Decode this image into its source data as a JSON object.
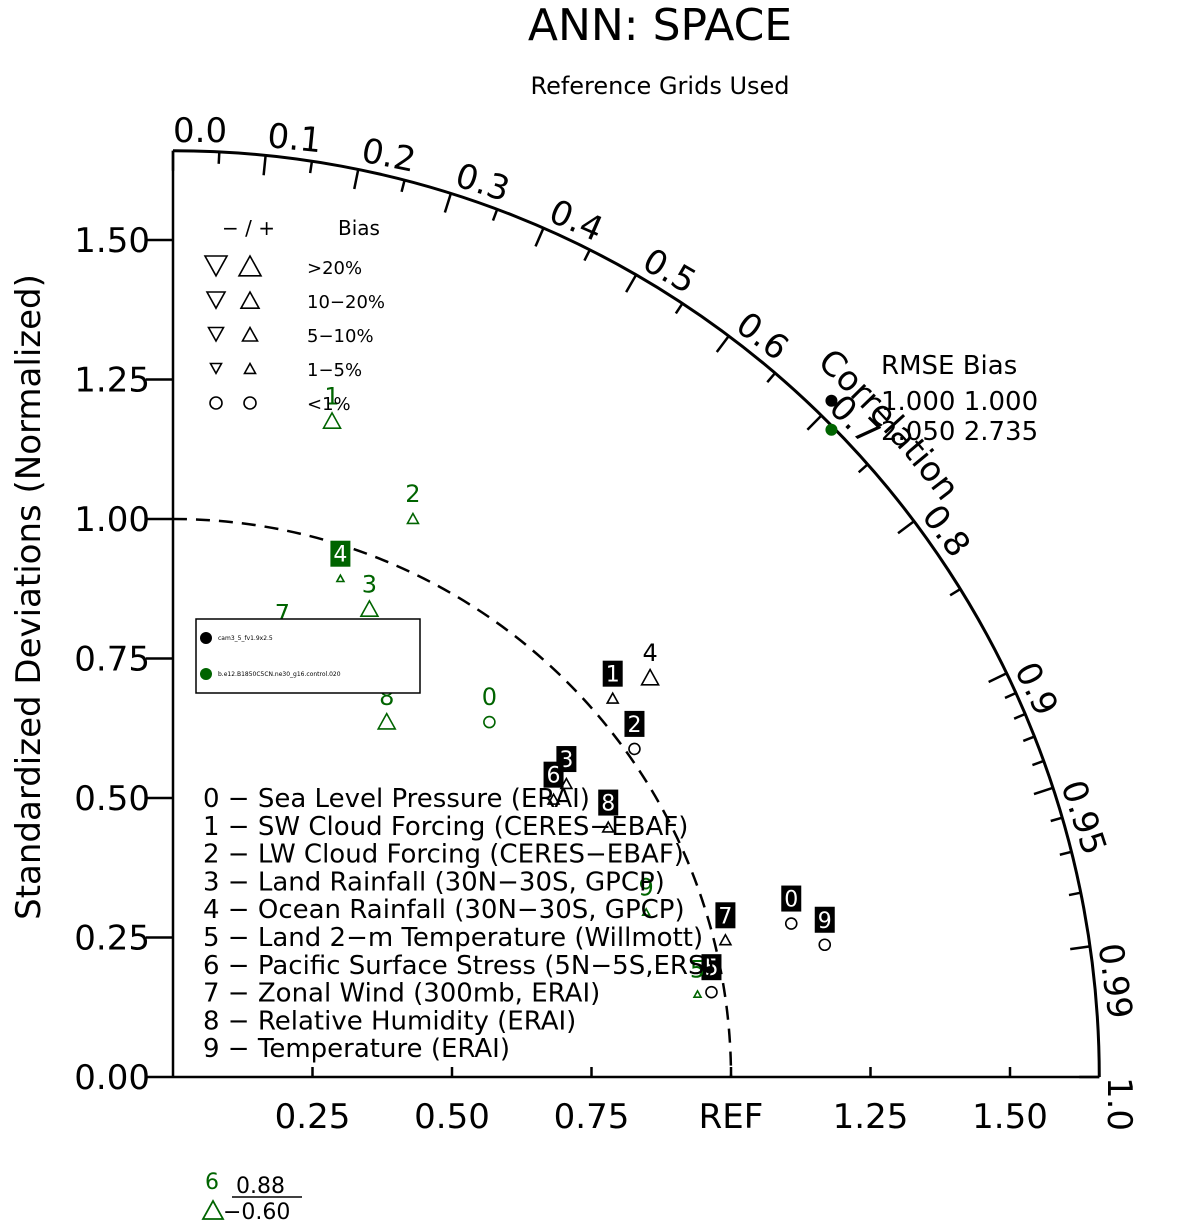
{
  "chart_data": {
    "type": "scatter",
    "title": "ANN: SPACE",
    "subtitle": "Reference Grids Used",
    "ylabel": "Standardized Deviations (Normalized)",
    "correlation_label": "Correlation",
    "ref_label": "REF",
    "std_ticks": [
      "0.00",
      "0.25",
      "0.50",
      "0.75",
      "1.00",
      "1.25",
      "1.50"
    ],
    "x_ticks": [
      {
        "v": 0.25,
        "label": "0.25"
      },
      {
        "v": 0.5,
        "label": "0.50"
      },
      {
        "v": 0.75,
        "label": "0.75"
      },
      {
        "v": 1.0,
        "label": "REF"
      },
      {
        "v": 1.25,
        "label": "1.25"
      },
      {
        "v": 1.5,
        "label": "1.50"
      }
    ],
    "corr_ticks": [
      {
        "r": 0.0,
        "label": "0.0"
      },
      {
        "r": 0.1,
        "label": "0.1"
      },
      {
        "r": 0.2,
        "label": "0.2"
      },
      {
        "r": 0.3,
        "label": "0.3"
      },
      {
        "r": 0.4,
        "label": "0.4"
      },
      {
        "r": 0.5,
        "label": "0.5"
      },
      {
        "r": 0.6,
        "label": "0.6"
      },
      {
        "r": 0.7,
        "label": "0.7"
      },
      {
        "r": 0.8,
        "label": "0.8"
      },
      {
        "r": 0.9,
        "label": "0.9"
      },
      {
        "r": 0.95,
        "label": "0.95"
      },
      {
        "r": 0.99,
        "label": "0.99"
      },
      {
        "r": 1.0,
        "label": "1.0"
      }
    ],
    "minor_corr_ticks": [
      0.05,
      0.15,
      0.25,
      0.35,
      0.45,
      0.55,
      0.65,
      0.75,
      0.85,
      0.91,
      0.92,
      0.93,
      0.94,
      0.96,
      0.97,
      0.98
    ],
    "max_std": 1.66,
    "bias_legend": {
      "header_signs": "− / +",
      "header_bias": "Bias",
      "rows": [
        ">20%",
        "10−20%",
        "5−10%",
        "1−5%",
        "<1%"
      ]
    },
    "rmse_box": {
      "header": "RMSE  Bias",
      "rows": [
        "1.000 1.000",
        "2.050 2.735"
      ]
    },
    "series": [
      {
        "name": "cam3_5_fv1.9x2.5",
        "color": "#000000"
      },
      {
        "name": "b.e12.B1850C5CN.ne30_g16.control.020",
        "color": "#006400"
      }
    ],
    "variables": [
      "0 − Sea Level Pressure (ERAI)",
      "1 − SW Cloud Forcing (CERES−EBAF)",
      "2 − LW Cloud Forcing (CERES−EBAF)",
      "3 − Land Rainfall (30N−30S, GPCP)",
      "4 − Ocean Rainfall (30N−30S, GPCP)",
      "5 − Land 2−m Temperature (Willmott)",
      "6 − Pacific Surface Stress (5N−5S,ERS)",
      "7 − Zonal Wind (300mb, ERAI)",
      "8 − Relative Humidity (ERAI)",
      "9 − Temperature (ERAI)"
    ],
    "points": [
      {
        "series": 0,
        "label": "0",
        "x": 1.108,
        "y": 0.275,
        "marker": "circle",
        "boxed": true
      },
      {
        "series": 0,
        "label": "1",
        "x": 0.788,
        "y": 0.678,
        "marker": "up",
        "size": 1,
        "boxed": true
      },
      {
        "series": 0,
        "label": "2",
        "x": 0.827,
        "y": 0.588,
        "marker": "circle",
        "boxed": true
      },
      {
        "series": 0,
        "label": "3",
        "x": 0.705,
        "y": 0.525,
        "marker": "up",
        "size": 1,
        "boxed": true
      },
      {
        "series": 0,
        "label": "4",
        "x": 0.855,
        "y": 0.715,
        "marker": "up",
        "size": 2,
        "boxed": false
      },
      {
        "series": 0,
        "label": "5",
        "x": 0.965,
        "y": 0.152,
        "marker": "circle",
        "boxed": true
      },
      {
        "series": 0,
        "label": "6",
        "x": 0.682,
        "y": 0.497,
        "marker": "up",
        "size": 1,
        "boxed": true
      },
      {
        "series": 0,
        "label": "7",
        "x": 0.99,
        "y": 0.245,
        "marker": "up",
        "size": 1,
        "boxed": true
      },
      {
        "series": 0,
        "label": "8",
        "x": 0.78,
        "y": 0.447,
        "marker": "up",
        "size": 1,
        "boxed": true
      },
      {
        "series": 0,
        "label": "9",
        "x": 1.168,
        "y": 0.237,
        "marker": "circle",
        "boxed": true
      },
      {
        "series": 1,
        "label": "0",
        "x": 0.567,
        "y": 0.636,
        "marker": "circle",
        "boxed": false
      },
      {
        "series": 1,
        "label": "2",
        "x": 0.43,
        "y": 1.0,
        "marker": "up",
        "size": 1,
        "boxed": false
      },
      {
        "series": 1,
        "label": "3",
        "x": 0.352,
        "y": 0.838,
        "marker": "up",
        "size": 2,
        "boxed": false
      },
      {
        "series": 1,
        "label": "4",
        "x": 0.3,
        "y": 0.893,
        "marker": "up",
        "size": 0,
        "boxed": true
      },
      {
        "series": 1,
        "label": "5",
        "x": 0.94,
        "y": 0.148,
        "marker": "up",
        "size": 0,
        "boxed": false
      },
      {
        "series": 1,
        "label": "7",
        "x": 0.196,
        "y": 0.786,
        "marker": "up",
        "size": 2,
        "boxed": false
      },
      {
        "series": 1,
        "label": "8",
        "x": 0.383,
        "y": 0.636,
        "marker": "up",
        "size": 2,
        "boxed": false
      },
      {
        "series": 1,
        "label": "9",
        "x": 0.848,
        "y": 0.295,
        "marker": "up",
        "size": 0,
        "boxed": false
      },
      {
        "series": 1,
        "label": "1",
        "x": 0.285,
        "y": 1.175,
        "marker": "up",
        "size": 2,
        "boxed": false
      }
    ],
    "ref_points": [
      {
        "series": 0,
        "x": 1.18,
        "y": 1.212
      },
      {
        "series": 1,
        "x": 1.18,
        "y": 1.16
      }
    ],
    "offscale": {
      "label": "6",
      "value": "0.88",
      "bias": "−0.60",
      "marker": "up",
      "color": "#006400"
    }
  }
}
